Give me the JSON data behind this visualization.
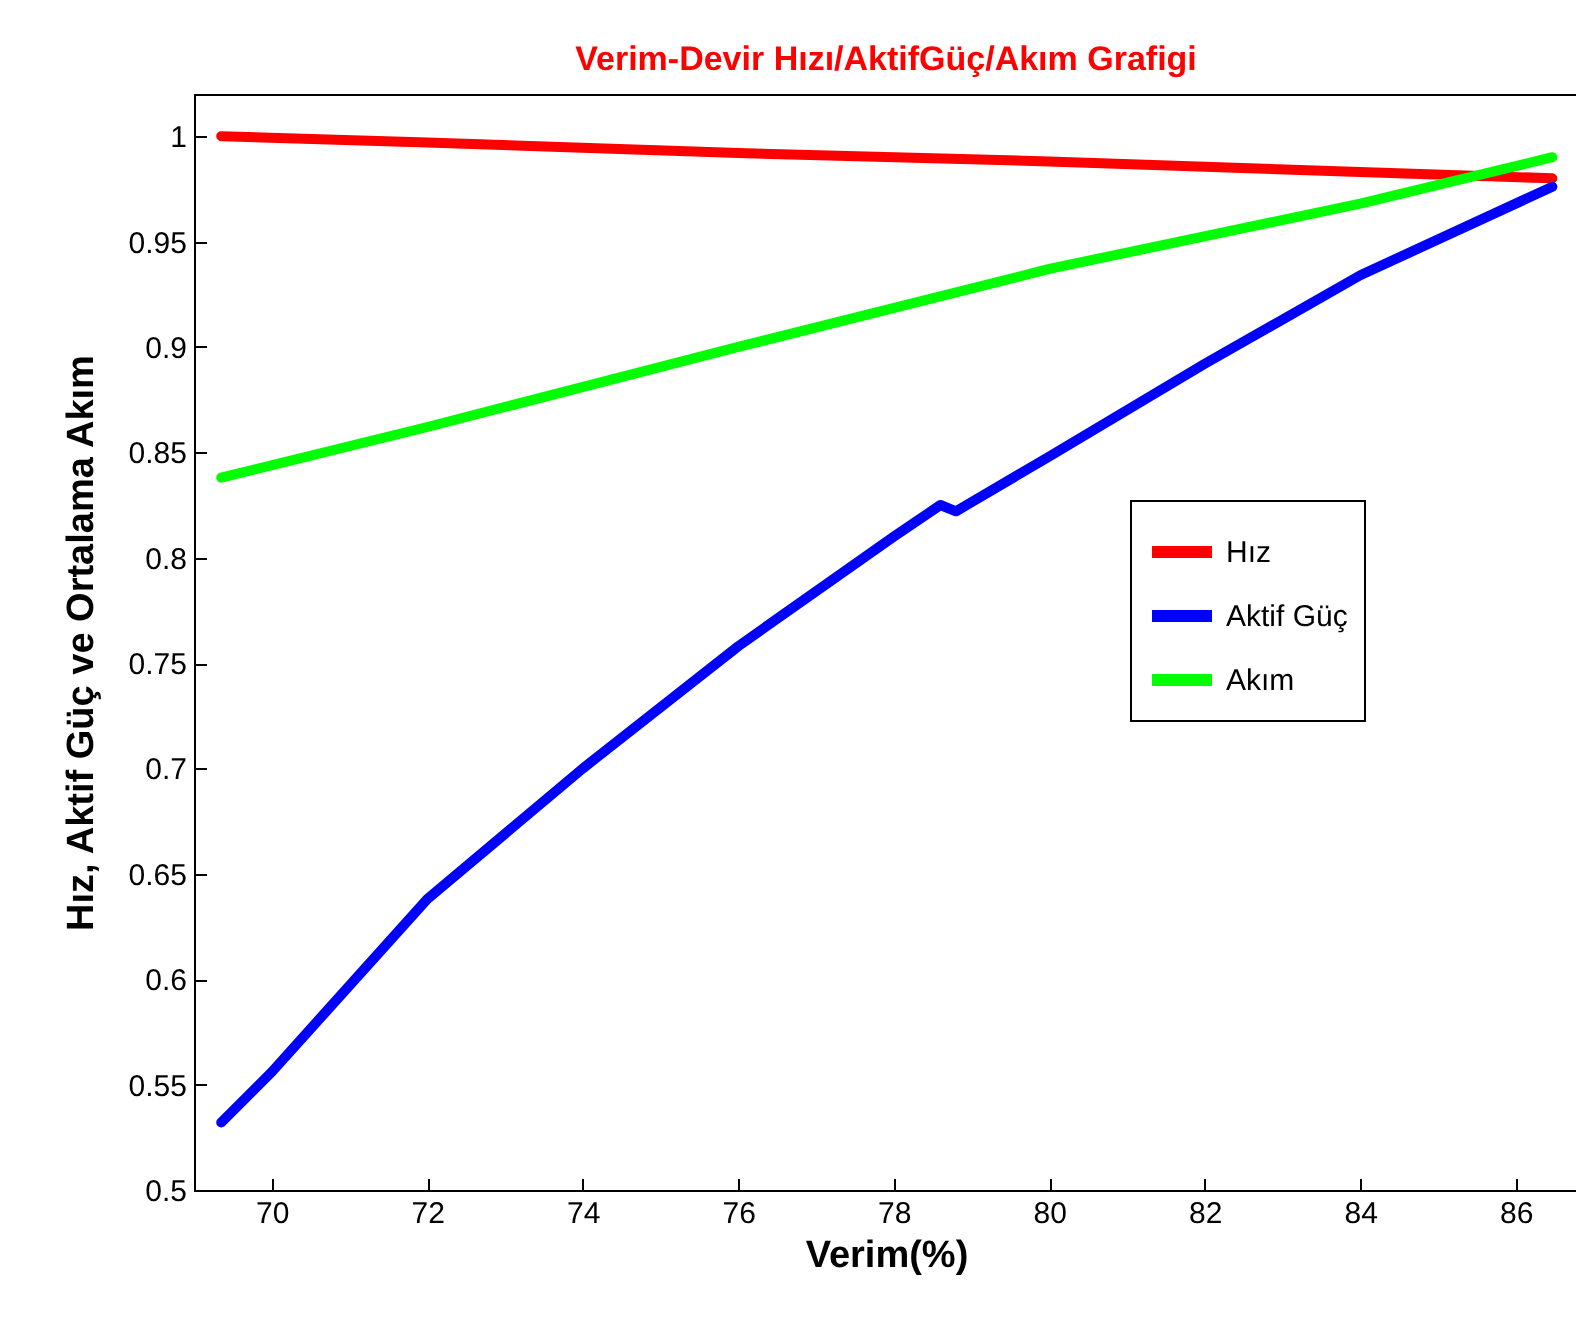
{
  "chart_data": {
    "type": "line",
    "title": "Verim-Devir Hızı/AktifGüç/Akım Grafigi",
    "xlabel": "Verim(%)",
    "ylabel": "Hız, Aktif Güç ve Ortalama Akım",
    "xlim": [
      69,
      86.8
    ],
    "ylim": [
      0.5,
      1.02
    ],
    "xticks": [
      70,
      72,
      74,
      76,
      78,
      80,
      82,
      84,
      86
    ],
    "yticks": [
      0.5,
      0.55,
      0.6,
      0.65,
      0.7,
      0.75,
      0.8,
      0.85,
      0.9,
      0.95,
      1
    ],
    "grid": false,
    "legend": "right",
    "line_style": "solid",
    "marker": "none",
    "series": [
      {
        "name": "Hız",
        "color": "#ff0000",
        "x": [
          69.35,
          72,
          76,
          80,
          84,
          86.47
        ],
        "values": [
          1.0,
          0.997,
          0.992,
          0.988,
          0.983,
          0.98
        ]
      },
      {
        "name": "Aktif Güç",
        "color": "#0000ff",
        "x": [
          69.35,
          70,
          72,
          74,
          76,
          78,
          78.6,
          78.8,
          80,
          82,
          84,
          86.47
        ],
        "values": [
          0.532,
          0.556,
          0.638,
          0.7,
          0.758,
          0.81,
          0.825,
          0.822,
          0.848,
          0.892,
          0.934,
          0.976
        ]
      },
      {
        "name": "Akım",
        "color": "#00ff00",
        "x": [
          69.35,
          72,
          76,
          80,
          84,
          86.47
        ],
        "values": [
          0.838,
          0.862,
          0.9,
          0.937,
          0.968,
          0.99
        ]
      }
    ]
  }
}
